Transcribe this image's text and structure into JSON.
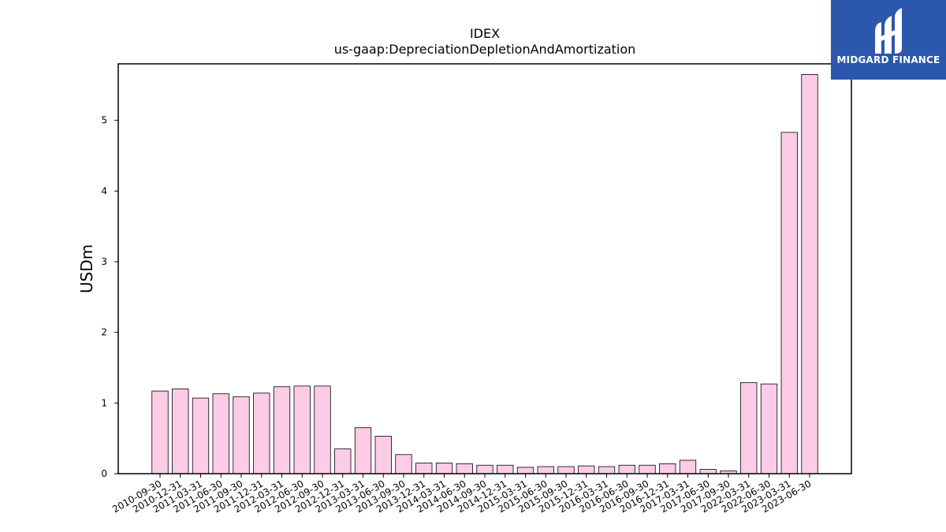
{
  "chart_data": {
    "type": "bar",
    "title": "IDEX",
    "subtitle": "us-gaap:DepreciationDepletionAndAmortization",
    "xlabel": "",
    "ylabel": "USDm",
    "ylim": [
      0,
      5.8
    ],
    "yticks": [
      0,
      1,
      2,
      3,
      4,
      5
    ],
    "grid": false,
    "bar_color": "#fccce6",
    "bar_edge_color": "#000000",
    "categories": [
      "2010-09-30",
      "2010-12-31",
      "2011-03-31",
      "2011-06-30",
      "2011-09-30",
      "2011-12-31",
      "2012-03-31",
      "2012-06-30",
      "2012-09-30",
      "2012-12-31",
      "2013-03-31",
      "2013-06-30",
      "2013-09-30",
      "2013-12-31",
      "2014-03-31",
      "2014-06-30",
      "2014-09-30",
      "2014-12-31",
      "2015-03-31",
      "2015-06-30",
      "2015-09-30",
      "2015-12-31",
      "2016-03-31",
      "2016-06-30",
      "2016-09-30",
      "2016-12-31",
      "2017-03-31",
      "2017-06-30",
      "2017-09-30",
      "2022-03-31",
      "2022-06-30",
      "2023-03-31",
      "2023-06-30"
    ],
    "values": [
      1.17,
      1.2,
      1.07,
      1.13,
      1.09,
      1.14,
      1.23,
      1.24,
      1.24,
      0.35,
      0.65,
      0.53,
      0.27,
      0.15,
      0.15,
      0.14,
      0.12,
      0.12,
      0.09,
      0.1,
      0.1,
      0.11,
      0.1,
      0.12,
      0.12,
      0.14,
      0.19,
      0.06,
      0.04,
      1.29,
      1.27,
      4.83,
      5.65
    ]
  },
  "logo": {
    "text": "MIDGARD FINANCE",
    "background": "#2b57ad"
  }
}
